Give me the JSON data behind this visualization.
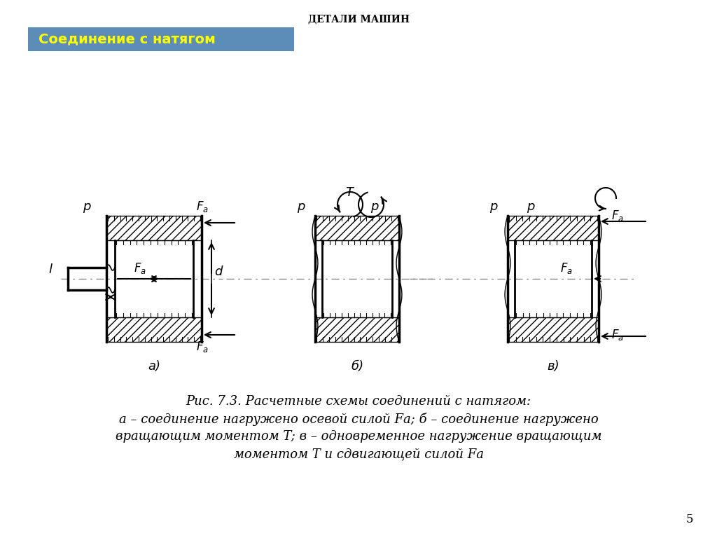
{
  "title": "ДЕТАЛИ МАШИН",
  "subtitle": "Соединение с натягом",
  "subtitle_bg": "#5b8db8",
  "subtitle_fg": "#ffff00",
  "fig_caption_line1": "Рис. 7.3. Расчетные схемы соединений с натягом:",
  "fig_caption_line2": "а – соединение нагружено осевой силой Fа; б – соединение нагружено",
  "fig_caption_line3": "вращающим моментом T; в – одновременное нагружение вращающим",
  "fig_caption_line4": "моментом T и сдвигающей силой Fа",
  "page_number": "5",
  "bg_color": "#ffffff",
  "diagram_color": "#000000",
  "label_a": "а)",
  "label_b": "б)",
  "label_c": "в)"
}
